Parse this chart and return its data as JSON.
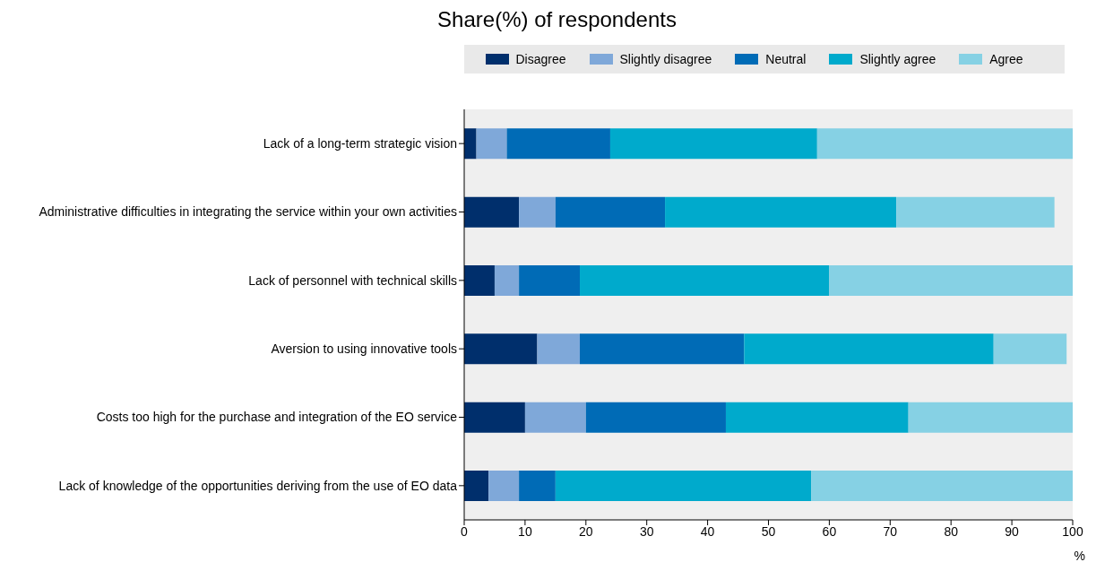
{
  "chart_data": {
    "type": "bar",
    "orientation": "horizontal",
    "stacked": true,
    "title": "Share(%) of respondents",
    "xlabel": "%",
    "categories": [
      "Lack of a long-term strategic vision",
      "Administrative difficulties in integrating the service within your own activities",
      "Lack of personnel with technical skills",
      "Aversion to using innovative tools",
      "Costs too high for the purchase and integration of the EO service",
      "Lack of knowledge of the opportunities deriving from the use of EO data"
    ],
    "series": [
      {
        "name": "Disagree",
        "color": "#002f6c",
        "values": [
          2,
          9,
          5,
          12,
          10,
          4
        ]
      },
      {
        "name": "Slightly disagree",
        "color": "#7fa8d9",
        "values": [
          5,
          6,
          4,
          7,
          10,
          5
        ]
      },
      {
        "name": "Neutral",
        "color": "#006bb6",
        "values": [
          17,
          18,
          10,
          27,
          23,
          6
        ]
      },
      {
        "name": "Slightly agree",
        "color": "#00aacc",
        "values": [
          34,
          38,
          41,
          41,
          30,
          42
        ]
      },
      {
        "name": "Agree",
        "color": "#86d1e4",
        "values": [
          42,
          26,
          40,
          12,
          27,
          43
        ]
      }
    ],
    "xlim": [
      0,
      100
    ],
    "xticks": [
      0,
      10,
      20,
      30,
      40,
      50,
      60,
      70,
      80,
      90,
      100
    ],
    "legend": "top",
    "grid": false
  }
}
